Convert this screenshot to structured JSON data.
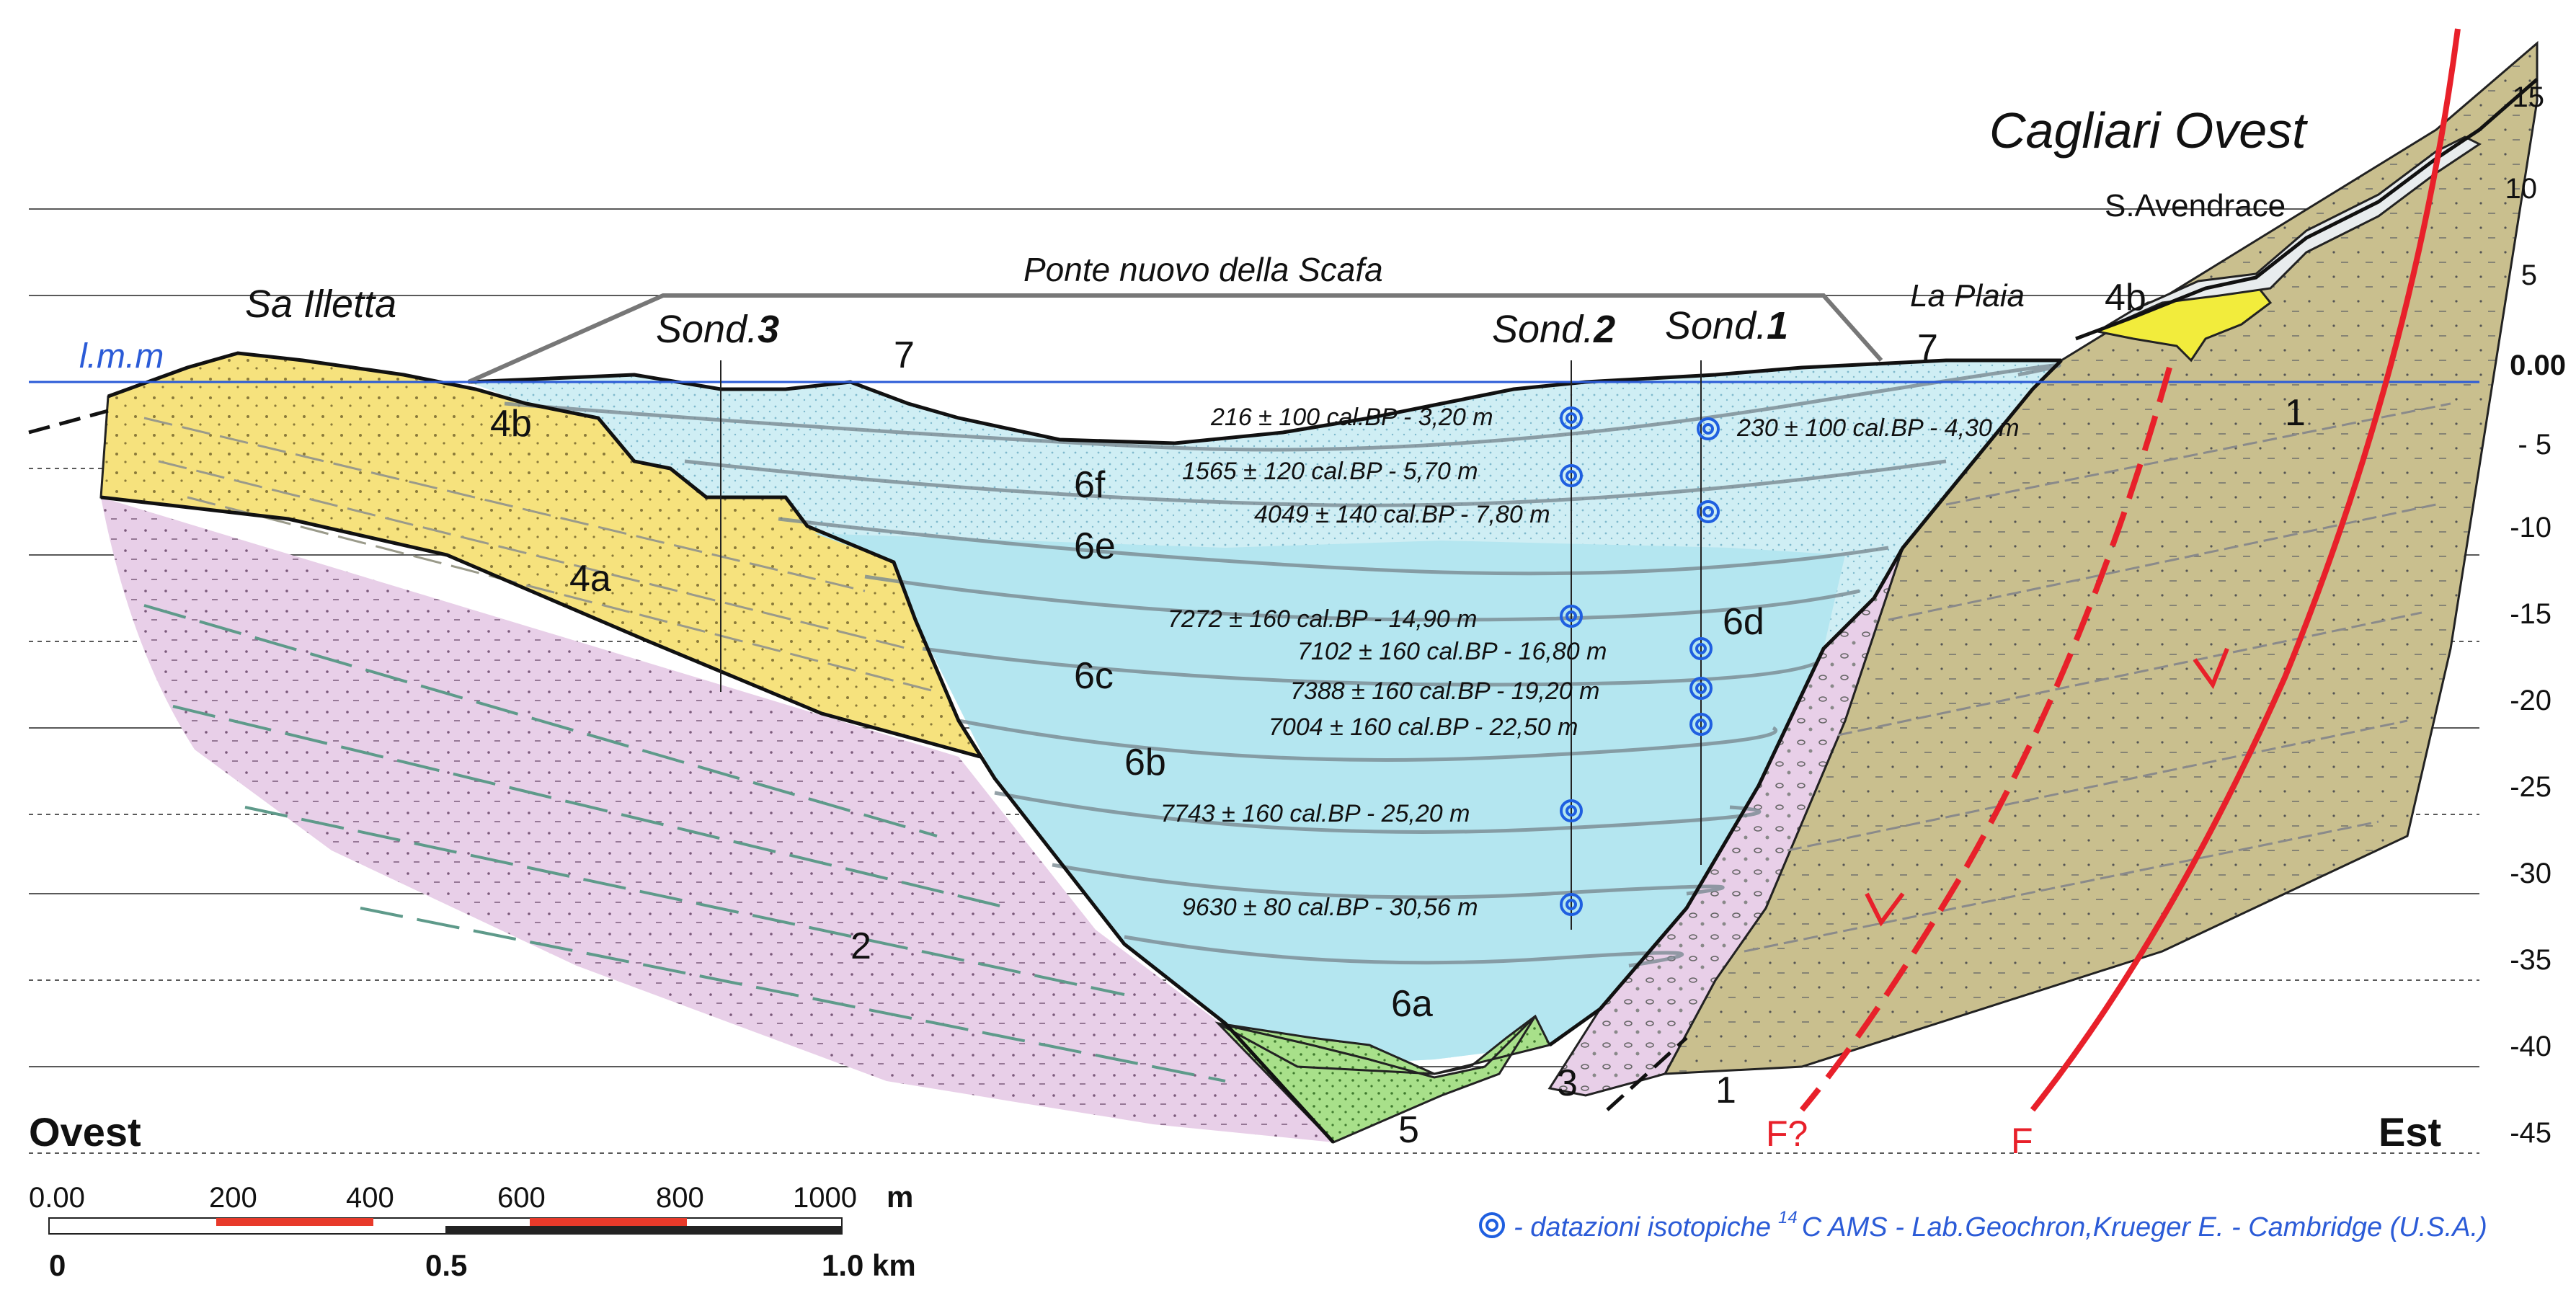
{
  "place_names": {
    "sa_illetta": "Sa Illetta",
    "cagliari_ovest": "Cagliari Ovest",
    "s_avendrace": "S.Avendrace",
    "la_plaia": "La Plaia",
    "ponte": "Ponte nuovo della Scafa",
    "lmm": "l.m.m"
  },
  "directions": {
    "west": "Ovest",
    "east": "Est"
  },
  "boreholes": [
    {
      "prefix": "Sond.",
      "num": "3"
    },
    {
      "prefix": "Sond.",
      "num": "2"
    },
    {
      "prefix": "Sond.",
      "num": "1"
    }
  ],
  "units": {
    "u1a": "1",
    "u1b": "1",
    "u2": "2",
    "u3": "3",
    "u4a": "4a",
    "u4b_left": "4b",
    "u4b_right": "4b",
    "u5": "5",
    "u6a": "6a",
    "u6b": "6b",
    "u6c": "6c",
    "u6d": "6d",
    "u6e": "6e",
    "u6f": "6f",
    "u7_left": "7",
    "u7_right": "7"
  },
  "faults": {
    "certain": "F",
    "uncertain": "F?"
  },
  "depth_axis": {
    "zero": "0.00",
    "ticks": [
      "15",
      "10",
      "5",
      "- 5",
      "-10",
      "-15",
      "-20",
      "-25",
      "-30",
      "-35",
      "-40",
      "-45"
    ]
  },
  "dates": [
    "216 ± 100 cal.BP - 3,20 m",
    "230 ± 100 cal.BP - 4,30 m",
    "1565 ± 120 cal.BP - 5,70 m",
    "4049 ± 140 cal.BP - 7,80 m",
    "7272 ± 160 cal.BP - 14,90 m",
    "7102 ± 160 cal.BP - 16,80 m",
    "7388 ± 160 cal.BP - 19,20 m",
    "7004 ± 160 cal.BP - 22,50 m",
    "7743 ± 160 cal.BP - 25,20 m",
    "9630 ± 80 cal.BP - 30,56 m"
  ],
  "scale": {
    "unit": "m",
    "top_ticks": [
      "0.00",
      "200",
      "400",
      "600",
      "800",
      "1000"
    ],
    "bottom_left": "0",
    "bottom_mid": "0.5",
    "bottom_right": "1.0 km"
  },
  "legend": {
    "text": "- datazioni isotopiche",
    "superscript": "14",
    "text2": "C AMS - Lab.Geochron,Krueger E. - Cambridge (U.S.A.)"
  },
  "colors": {
    "marine_light": "#cfeef4",
    "marine": "#b4e6f0",
    "yellow": "#f6e27d",
    "pink": "#e8cfe8",
    "khaki": "#c9bf8e",
    "green": "#a8e08a",
    "fault_red": "#e8202a",
    "datum_blue": "#2b5bd7",
    "spiral_blue": "#1f5fe0"
  }
}
